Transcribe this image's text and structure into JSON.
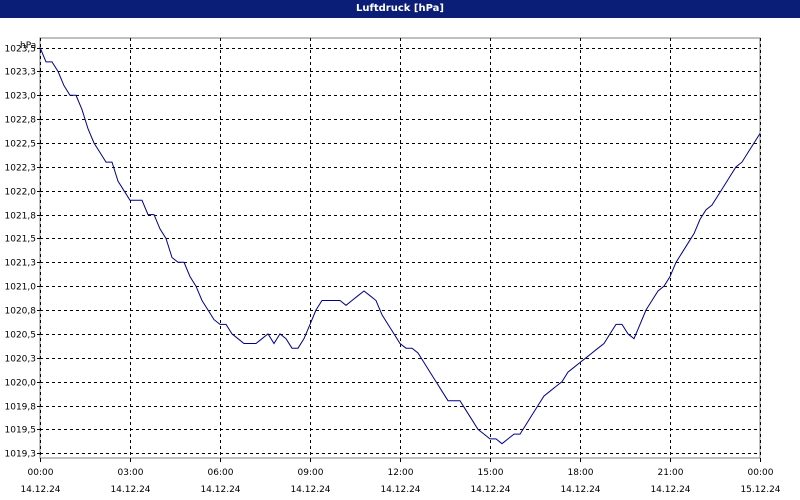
{
  "window": {
    "title": "Luftdruck [hPa]"
  },
  "chart_data": {
    "type": "line",
    "title": "Luftdruck [hPa]",
    "ylabel": "hPa",
    "xlabel": "",
    "ylim": [
      1019.2,
      1023.6
    ],
    "xlim_hours": [
      0,
      24
    ],
    "grid": true,
    "y_ticks": [
      "1023,5",
      "1023,3",
      "1023,0",
      "1022,8",
      "1022,5",
      "1022,3",
      "1022,0",
      "1021,8",
      "1021,5",
      "1021,3",
      "1021,0",
      "1020,8",
      "1020,5",
      "1020,3",
      "1020,0",
      "1019,8",
      "1019,5",
      "1019,3"
    ],
    "y_tick_values": [
      1023.5,
      1023.25,
      1023.0,
      1022.75,
      1022.5,
      1022.25,
      1022.0,
      1021.75,
      1021.5,
      1021.25,
      1021.0,
      1020.75,
      1020.5,
      1020.25,
      1020.0,
      1019.75,
      1019.5,
      1019.25
    ],
    "x_ticks": [
      {
        "time": "00:00",
        "date": "14.12.24"
      },
      {
        "time": "03:00",
        "date": "14.12.24"
      },
      {
        "time": "06:00",
        "date": "14.12.24"
      },
      {
        "time": "09:00",
        "date": "14.12.24"
      },
      {
        "time": "12:00",
        "date": "14.12.24"
      },
      {
        "time": "15:00",
        "date": "14.12.24"
      },
      {
        "time": "18:00",
        "date": "14.12.24"
      },
      {
        "time": "21:00",
        "date": "14.12.24"
      },
      {
        "time": "00:00",
        "date": "15.12.24"
      }
    ],
    "series": [
      {
        "color": "#00008b",
        "x": [
          0.0,
          0.2,
          0.4,
          0.6,
          0.8,
          1.0,
          1.2,
          1.4,
          1.6,
          1.8,
          2.0,
          2.2,
          2.4,
          2.6,
          2.8,
          3.0,
          3.2,
          3.4,
          3.6,
          3.8,
          4.0,
          4.2,
          4.4,
          4.6,
          4.8,
          5.0,
          5.2,
          5.4,
          5.6,
          5.8,
          6.0,
          6.2,
          6.4,
          6.6,
          6.8,
          7.0,
          7.2,
          7.4,
          7.6,
          7.8,
          8.0,
          8.2,
          8.4,
          8.6,
          8.8,
          9.0,
          9.2,
          9.4,
          9.6,
          9.8,
          10.0,
          10.2,
          10.4,
          10.6,
          10.8,
          11.0,
          11.2,
          11.4,
          11.6,
          11.8,
          12.0,
          12.2,
          12.4,
          12.6,
          12.8,
          13.0,
          13.2,
          13.4,
          13.6,
          13.8,
          14.0,
          14.2,
          14.4,
          14.6,
          14.8,
          15.0,
          15.2,
          15.4,
          15.6,
          15.8,
          16.0,
          16.2,
          16.4,
          16.6,
          16.8,
          17.0,
          17.2,
          17.4,
          17.6,
          17.8,
          18.0,
          18.2,
          18.4,
          18.6,
          18.8,
          19.0,
          19.2,
          19.4,
          19.6,
          19.8,
          20.0,
          20.2,
          20.4,
          20.6,
          20.8,
          21.0,
          21.2,
          21.4,
          21.6,
          21.8,
          22.0,
          22.2,
          22.4,
          22.6,
          22.8,
          23.0,
          23.2,
          23.4,
          23.6,
          23.8,
          24.0
        ],
        "y": [
          1023.5,
          1023.35,
          1023.35,
          1023.25,
          1023.1,
          1023.0,
          1023.0,
          1022.85,
          1022.65,
          1022.5,
          1022.4,
          1022.3,
          1022.3,
          1022.1,
          1022.0,
          1021.9,
          1021.9,
          1021.9,
          1021.75,
          1021.75,
          1021.6,
          1021.5,
          1021.3,
          1021.25,
          1021.25,
          1021.1,
          1021.0,
          1020.85,
          1020.75,
          1020.65,
          1020.6,
          1020.6,
          1020.5,
          1020.45,
          1020.4,
          1020.4,
          1020.4,
          1020.45,
          1020.5,
          1020.4,
          1020.5,
          1020.45,
          1020.35,
          1020.35,
          1020.45,
          1020.6,
          1020.75,
          1020.85,
          1020.85,
          1020.85,
          1020.85,
          1020.8,
          1020.85,
          1020.9,
          1020.95,
          1020.9,
          1020.85,
          1020.7,
          1020.6,
          1020.5,
          1020.4,
          1020.35,
          1020.35,
          1020.3,
          1020.2,
          1020.1,
          1020.0,
          1019.9,
          1019.8,
          1019.8,
          1019.8,
          1019.7,
          1019.6,
          1019.5,
          1019.45,
          1019.4,
          1019.4,
          1019.35,
          1019.4,
          1019.45,
          1019.45,
          1019.55,
          1019.65,
          1019.75,
          1019.85,
          1019.9,
          1019.95,
          1020.0,
          1020.1,
          1020.15,
          1020.2,
          1020.25,
          1020.3,
          1020.35,
          1020.4,
          1020.5,
          1020.6,
          1020.6,
          1020.5,
          1020.45,
          1020.6,
          1020.75,
          1020.85,
          1020.95,
          1021.0,
          1021.1,
          1021.25,
          1021.35,
          1021.45,
          1021.55,
          1021.7,
          1021.8,
          1021.85,
          1021.95,
          1022.05,
          1022.15,
          1022.25,
          1022.3,
          1022.4,
          1022.5,
          1022.6
        ]
      }
    ]
  }
}
